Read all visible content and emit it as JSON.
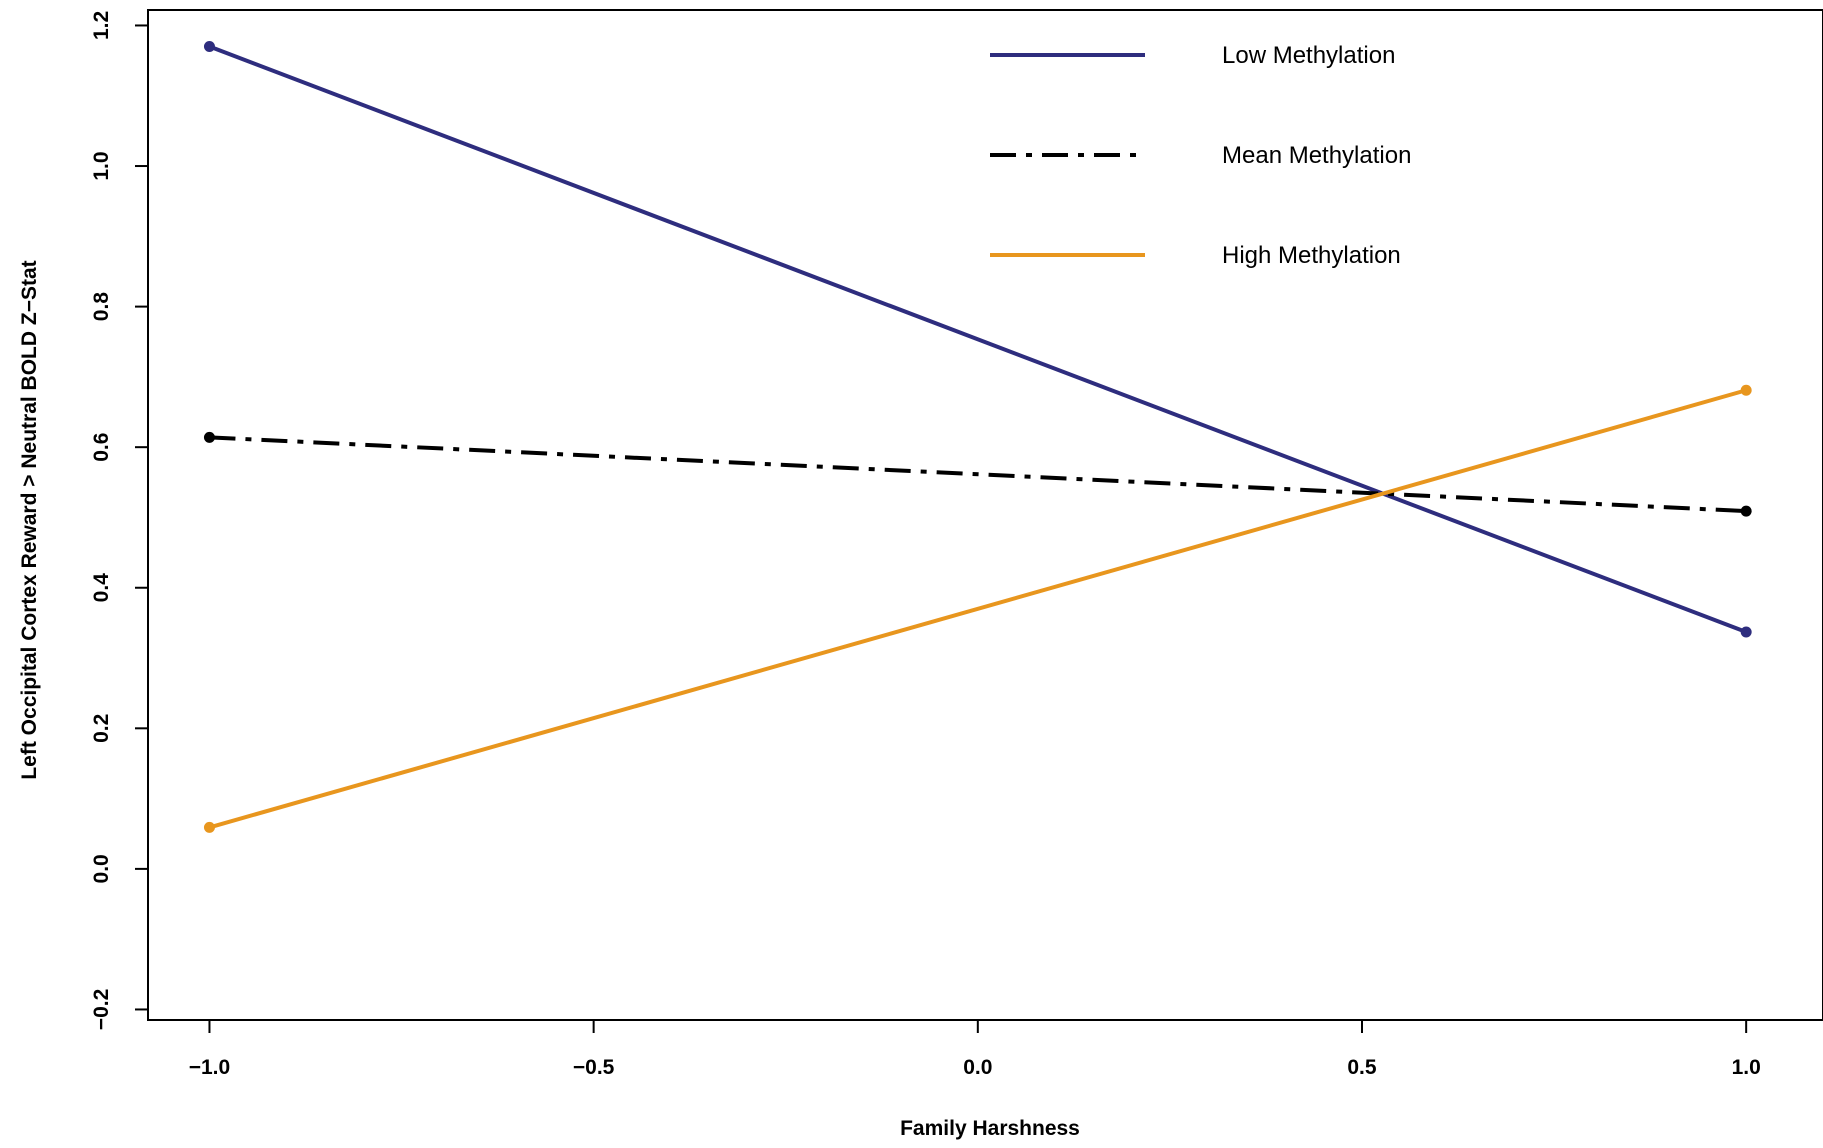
{
  "chart_data": {
    "type": "line",
    "title": "",
    "xlabel": "Family Harshness",
    "ylabel": "Left Occipital Cortex Reward > Neutral BOLD Z−Stat",
    "xlim": [
      -1.08,
      1.1
    ],
    "ylim": [
      -0.215,
      1.222
    ],
    "x_ticks": [
      -1.0,
      -0.5,
      0.0,
      0.5,
      1.0
    ],
    "x_tick_labels": [
      "−1.0",
      "−0.5",
      "0.0",
      "0.5",
      "1.0"
    ],
    "y_ticks": [
      -0.2,
      0.0,
      0.2,
      0.4,
      0.6,
      0.8,
      1.0,
      1.2
    ],
    "y_tick_labels": [
      "−0.2",
      "0.0",
      "0.2",
      "0.4",
      "0.6",
      "0.8",
      "1.0",
      "1.2"
    ],
    "grid": false,
    "legend_position": "top-center",
    "series": [
      {
        "name": "Low Methylation",
        "x": [
          -1.0,
          1.0
        ],
        "y": [
          1.17,
          0.337
        ],
        "color": "#2e2d7e",
        "line_style": "solid"
      },
      {
        "name": "Mean Methylation",
        "x": [
          -1.0,
          1.0
        ],
        "y": [
          0.614,
          0.509
        ],
        "color": "#000000",
        "line_style": "dashdot"
      },
      {
        "name": "High Methylation",
        "x": [
          -1.0,
          1.0
        ],
        "y": [
          0.059,
          0.681
        ],
        "color": "#e8961e",
        "line_style": "solid"
      }
    ]
  }
}
